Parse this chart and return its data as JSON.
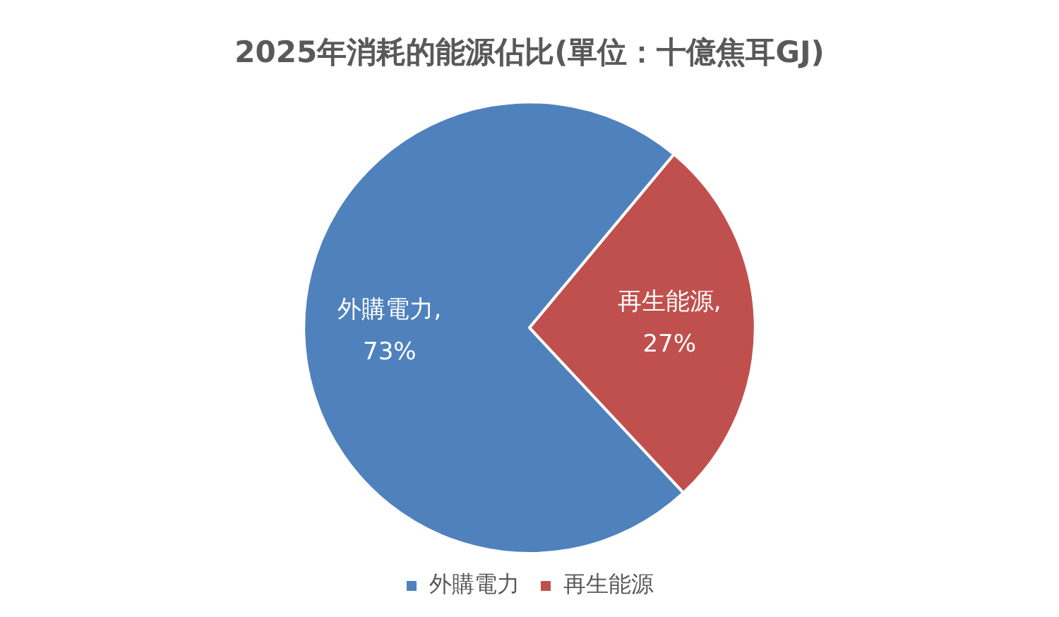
{
  "chart_data": {
    "type": "pie",
    "title": "2025年消耗的能源佔比(單位：十億焦耳GJ)",
    "categories": [
      "外購電力",
      "再生能源"
    ],
    "values": [
      73,
      27
    ],
    "colors": [
      "#4f81bd",
      "#c0504d"
    ],
    "value_labels": [
      "外購電力,\n73%",
      "再生能源,\n27%"
    ],
    "legend": "bottom"
  }
}
